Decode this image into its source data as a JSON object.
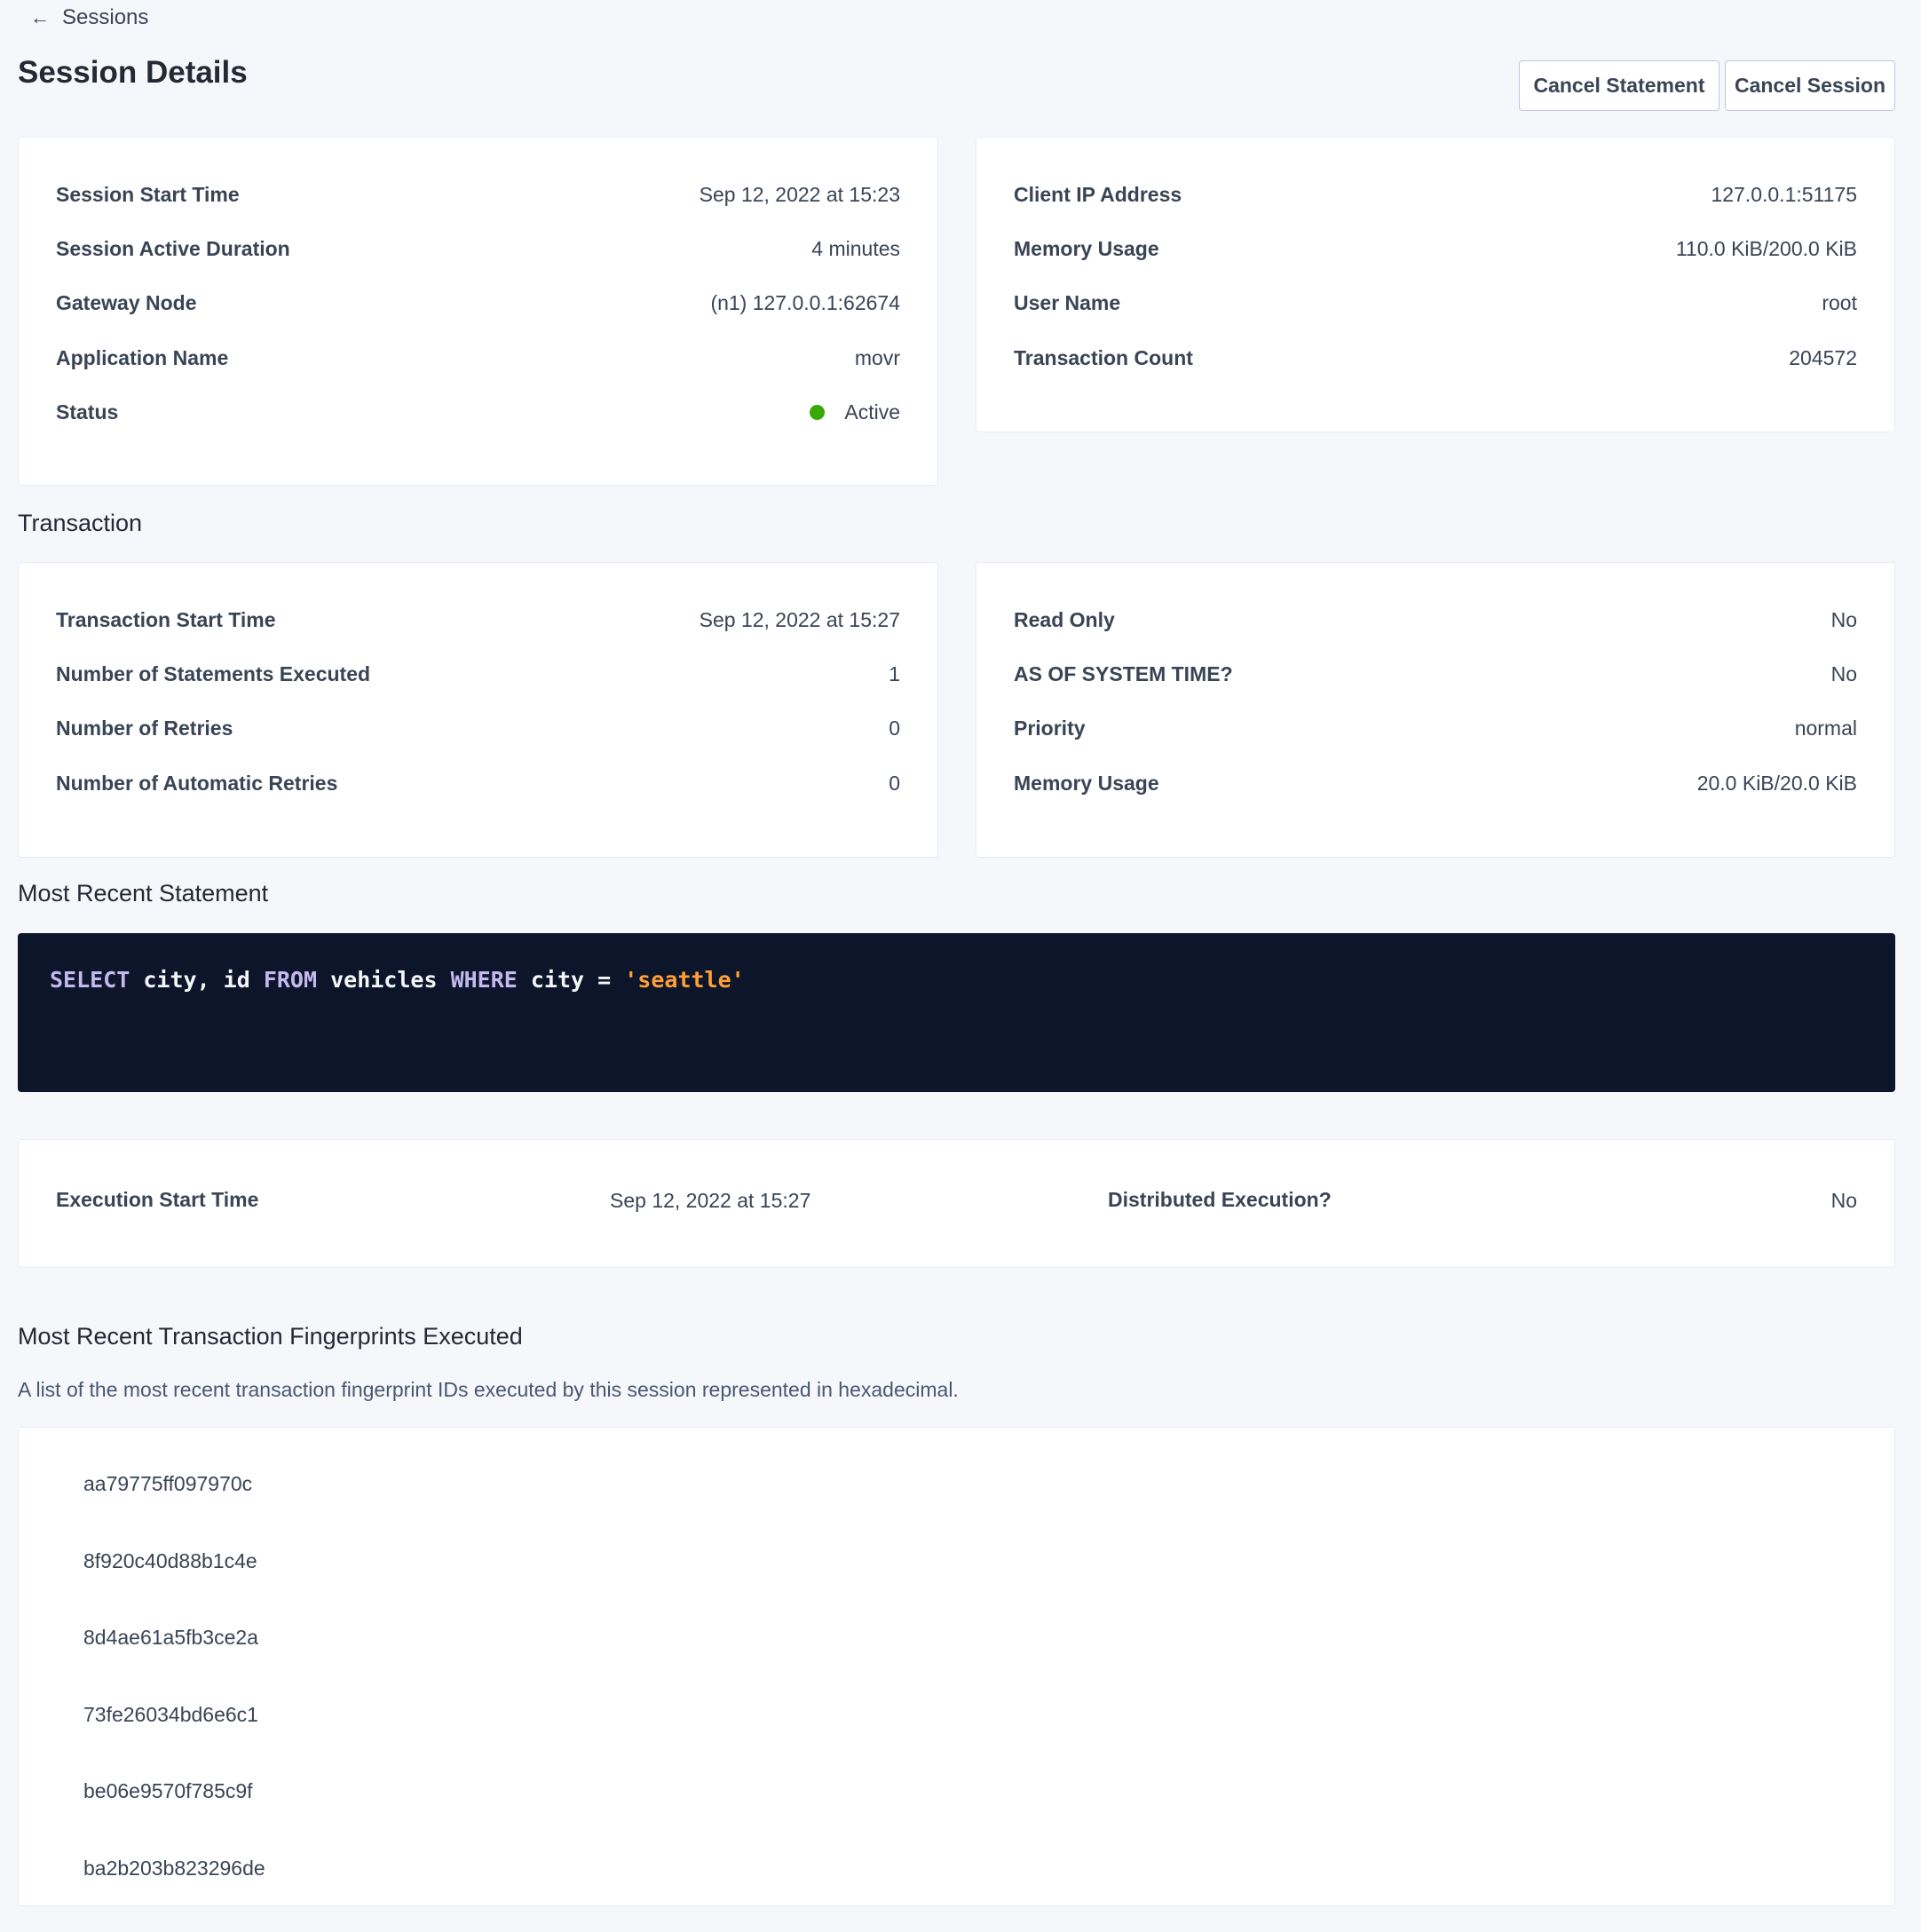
{
  "breadcrumb": {
    "icon": "arrow-left-icon",
    "label": "Sessions"
  },
  "page_title": "Session Details",
  "actions": {
    "cancel_statement": "Cancel Statement",
    "cancel_session": "Cancel Session"
  },
  "session_left": [
    {
      "label": "Session Start Time",
      "value": "Sep 12, 2022 at 15:23"
    },
    {
      "label": "Session Active Duration",
      "value": "4 minutes"
    },
    {
      "label": "Gateway Node",
      "value": "(n1) 127.0.0.1:62674"
    },
    {
      "label": "Application Name",
      "value": "movr"
    },
    {
      "label": "Status",
      "value": "Active"
    }
  ],
  "status_color": "#37a806",
  "session_right": [
    {
      "label": "Client IP Address",
      "value": "127.0.0.1:51175"
    },
    {
      "label": "Memory Usage",
      "value": "110.0 KiB/200.0 KiB"
    },
    {
      "label": "User Name",
      "value": "root"
    },
    {
      "label": "Transaction Count",
      "value": "204572"
    }
  ],
  "transaction": {
    "heading": "Transaction",
    "left": [
      {
        "label": "Transaction Start Time",
        "value": "Sep 12, 2022 at 15:27"
      },
      {
        "label": "Number of Statements Executed",
        "value": "1"
      },
      {
        "label": "Number of Retries",
        "value": "0"
      },
      {
        "label": "Number of Automatic Retries",
        "value": "0"
      }
    ],
    "right": [
      {
        "label": "Read Only",
        "value": "No"
      },
      {
        "label": "AS OF SYSTEM TIME?",
        "value": "No"
      },
      {
        "label": "Priority",
        "value": "normal"
      },
      {
        "label": "Memory Usage",
        "value": "20.0 KiB/20.0 KiB"
      }
    ]
  },
  "statement": {
    "heading": "Most Recent Statement",
    "tokens": {
      "t1": "SELECT",
      "t2": " city, id ",
      "t3": "FROM",
      "t4": " vehicles ",
      "t5": "WHERE",
      "t6": " city = ",
      "t7": "'seattle'"
    },
    "execution_start_label": "Execution Start Time",
    "execution_start_value": "Sep 12, 2022 at 15:27",
    "distributed_label": "Distributed Execution?",
    "distributed_value": "No"
  },
  "fingerprints": {
    "heading": "Most Recent Transaction Fingerprints Executed",
    "description": "A list of the most recent transaction fingerprint IDs executed by this session represented in hexadecimal.",
    "items": [
      "aa79775ff097970c",
      "8f920c40d88b1c4e",
      "8d4ae61a5fb3ce2a",
      "73fe26034bd6e6c1",
      "be06e9570f785c9f",
      "ba2b203b823296de"
    ]
  }
}
